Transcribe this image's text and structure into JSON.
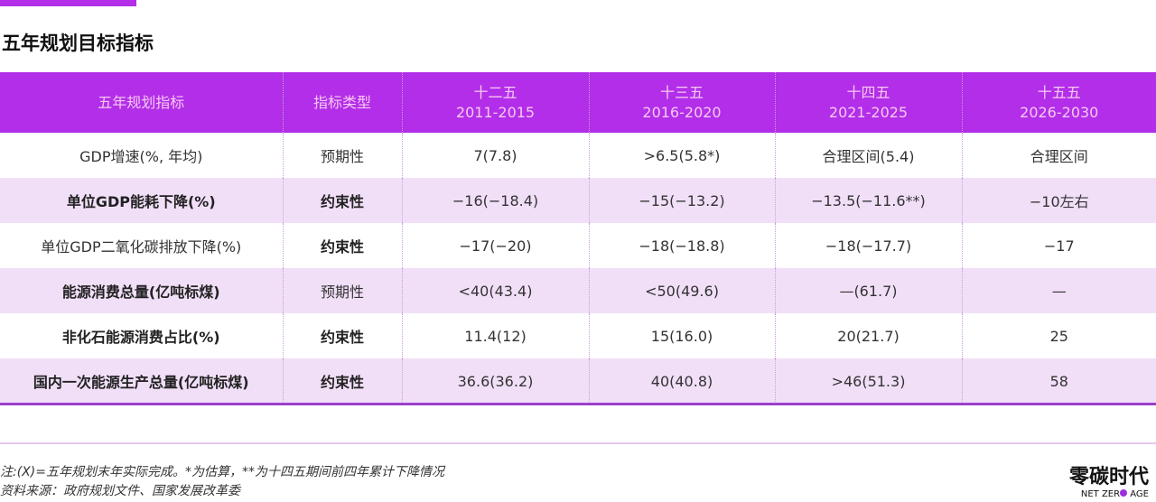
{
  "title": "五年规划目标指标",
  "headers": {
    "indicator": "五年规划指标",
    "type": "指标类型",
    "p12": {
      "name": "十二五",
      "years": "2011-2015"
    },
    "p13": {
      "name": "十三五",
      "years": "2016-2020"
    },
    "p14": {
      "name": "十四五",
      "years": "2021-2025"
    },
    "p15": {
      "name": "十五五",
      "years": "2026-2030"
    }
  },
  "rows": [
    [
      "GDP增速(%, 年均)",
      "预期性",
      "7(7.8)",
      ">6.5(5.8*)",
      "合理区间(5.4)",
      "合理区间"
    ],
    [
      "单位GDP能耗下降(%)",
      "约束性",
      "−16(−18.4)",
      "−15(−13.2)",
      "−13.5(−11.6**)",
      "−10左右"
    ],
    [
      "单位GDP二氧化碳排放下降(%)",
      "约束性",
      "−17(−20)",
      "−18(−18.8)",
      "−18(−17.7)",
      "−17"
    ],
    [
      "能源消费总量(亿吨标煤)",
      "预期性",
      "<40(43.4)",
      "<50(49.6)",
      "—(61.7)",
      "—"
    ],
    [
      "非化石能源消费占比(%)",
      "约束性",
      "11.4(12)",
      "15(16.0)",
      "20(21.7)",
      "25"
    ],
    [
      "国内一次能源生产总量(亿吨标煤)",
      "约束性",
      "36.6(36.2)",
      "40(40.8)",
      ">46(51.3)",
      "58"
    ]
  ],
  "notes": {
    "note": "注:(X)=五年规划末年实际完成。*为估算，**为十四五期间前四年累计下降情况",
    "source": "资料来源：政府规划文件、国家发展改革委"
  },
  "logo": {
    "cn": "零碳时代",
    "en_left": "NET ZER",
    "en_right": " AGE"
  }
}
